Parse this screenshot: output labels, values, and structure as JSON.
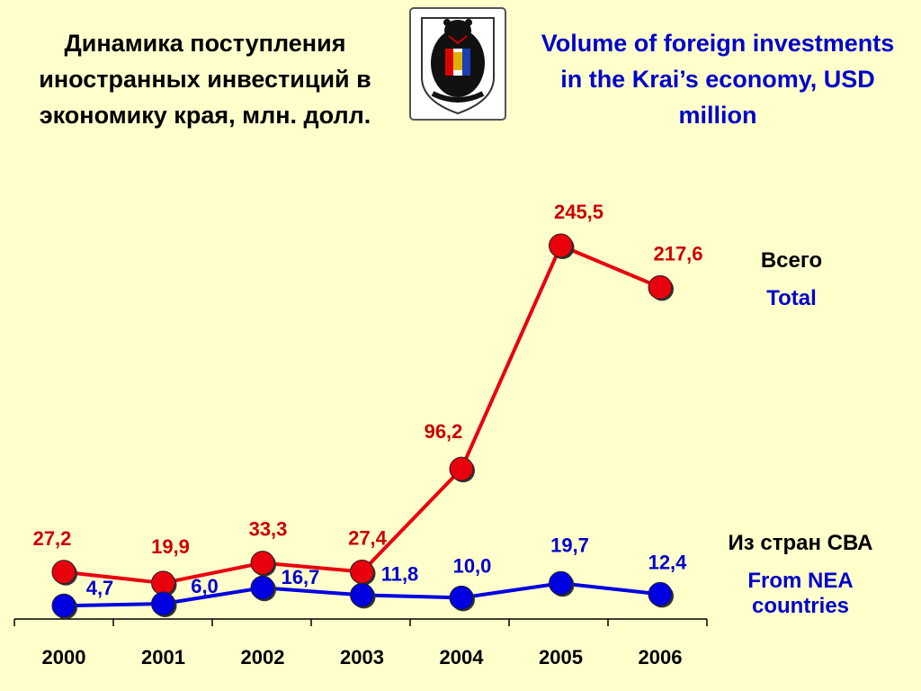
{
  "header": {
    "title_ru": "Динамика поступления иностранных инвестиций в экономику края, млн. долл.",
    "title_en": "Volume of foreign investments in the Krai’s economy, USD million"
  },
  "emblem": {
    "icon": "bear-coat-of-arms-icon"
  },
  "legend": {
    "total_ru": "Всего",
    "total_en": "Total",
    "nea_ru": "Из стран СВА",
    "nea_en": "From NEA countries"
  },
  "colors": {
    "background": "#ffffcc",
    "total": "#e8000d",
    "nea": "#0000e0",
    "total_label": "#cc0000",
    "nea_label": "#0000cc"
  },
  "chart_data": {
    "type": "line",
    "x": [
      "2000",
      "2001",
      "2002",
      "2003",
      "2004",
      "2005",
      "2006"
    ],
    "series": [
      {
        "name": "Всего / Total",
        "values": [
          27.2,
          19.9,
          33.3,
          27.4,
          96.2,
          245.5,
          217.6
        ],
        "labels": [
          "27,2",
          "19,9",
          "33,3",
          "27,4",
          "96,2",
          "245,5",
          "217,6"
        ]
      },
      {
        "name": "Из стран СВА / From NEA countries",
        "values": [
          4.7,
          6.0,
          16.7,
          11.8,
          10.0,
          19.7,
          12.4
        ],
        "labels": [
          "4,7",
          "6,0",
          "16,7",
          "11,8",
          "10,0",
          "19,7",
          "12,4"
        ]
      }
    ],
    "ylim": [
      0,
      260
    ],
    "grid": false
  }
}
